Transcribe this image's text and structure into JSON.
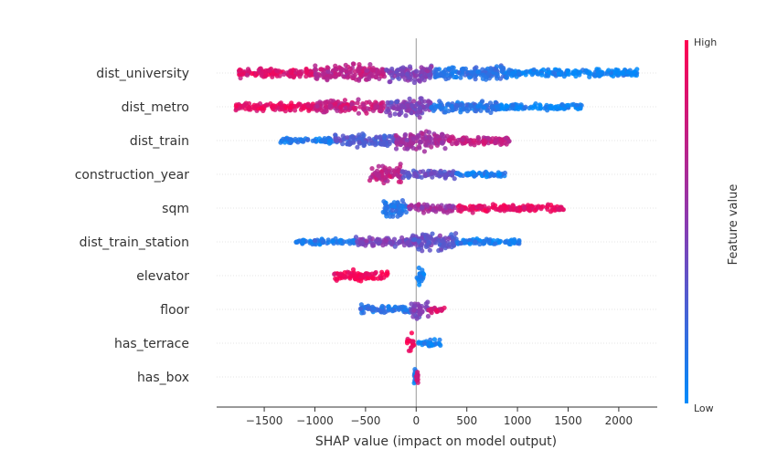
{
  "chart_data": {
    "type": "scatter",
    "subtype": "shap-beeswarm",
    "xlabel": "SHAP value (impact on model output)",
    "xlim": [
      -1970,
      2380
    ],
    "xticks": [
      -1500,
      -1000,
      -500,
      0,
      500,
      1000,
      1500,
      2000
    ],
    "xtick_labels": [
      "−1500",
      "−1000",
      "−500",
      "0",
      "500",
      "1000",
      "1500",
      "2000"
    ],
    "grid": false,
    "colorbar": {
      "label": "Feature value",
      "high_label": "High",
      "low_label": "Low",
      "high_color": "#ff0051",
      "low_color": "#008bfb"
    },
    "features": [
      {
        "name": "dist_university",
        "min": -1750,
        "max": 2180,
        "clusters": [
          {
            "start": -1750,
            "end": -1000,
            "fv": 0.85,
            "spread": 0.55
          },
          {
            "start": -1000,
            "end": -300,
            "fv": 0.7,
            "spread": 0.9
          },
          {
            "start": -300,
            "end": 150,
            "fv": 0.45,
            "spread": 1.0
          },
          {
            "start": 150,
            "end": 900,
            "fv": 0.15,
            "spread": 0.75
          },
          {
            "start": 900,
            "end": 2180,
            "fv": 0.05,
            "spread": 0.45
          }
        ]
      },
      {
        "name": "dist_metro",
        "min": -1780,
        "max": 1640,
        "clusters": [
          {
            "start": -1780,
            "end": -1000,
            "fv": 0.9,
            "spread": 0.45
          },
          {
            "start": -1000,
            "end": -300,
            "fv": 0.75,
            "spread": 0.7
          },
          {
            "start": -300,
            "end": 150,
            "fv": 0.45,
            "spread": 1.0
          },
          {
            "start": 150,
            "end": 800,
            "fv": 0.15,
            "spread": 0.6
          },
          {
            "start": 800,
            "end": 1640,
            "fv": 0.05,
            "spread": 0.35
          }
        ]
      },
      {
        "name": "dist_train",
        "min": -1340,
        "max": 920,
        "clusters": [
          {
            "start": -1340,
            "end": -800,
            "fv": 0.1,
            "spread": 0.3
          },
          {
            "start": -800,
            "end": -200,
            "fv": 0.3,
            "spread": 0.7
          },
          {
            "start": -200,
            "end": 300,
            "fv": 0.6,
            "spread": 1.0
          },
          {
            "start": 300,
            "end": 920,
            "fv": 0.75,
            "spread": 0.5
          }
        ]
      },
      {
        "name": "construction_year",
        "min": -460,
        "max": 880,
        "clusters": [
          {
            "start": -460,
            "end": -150,
            "fv": 0.7,
            "spread": 1.0
          },
          {
            "start": -150,
            "end": 400,
            "fv": 0.35,
            "spread": 0.45
          },
          {
            "start": 400,
            "end": 880,
            "fv": 0.1,
            "spread": 0.3
          }
        ]
      },
      {
        "name": "sqm",
        "min": -330,
        "max": 1460,
        "clusters": [
          {
            "start": -330,
            "end": -80,
            "fv": 0.15,
            "spread": 1.0
          },
          {
            "start": -80,
            "end": 400,
            "fv": 0.6,
            "spread": 0.45
          },
          {
            "start": 400,
            "end": 1460,
            "fv": 0.9,
            "spread": 0.4
          }
        ]
      },
      {
        "name": "dist_train_station",
        "min": -1190,
        "max": 1030,
        "clusters": [
          {
            "start": -1190,
            "end": -600,
            "fv": 0.1,
            "spread": 0.3
          },
          {
            "start": -600,
            "end": -50,
            "fv": 0.45,
            "spread": 0.55
          },
          {
            "start": -50,
            "end": 400,
            "fv": 0.35,
            "spread": 1.0
          },
          {
            "start": 400,
            "end": 1030,
            "fv": 0.1,
            "spread": 0.35
          }
        ]
      },
      {
        "name": "elevator",
        "min": -810,
        "max": 80,
        "clusters": [
          {
            "start": -810,
            "end": -280,
            "fv": 0.95,
            "spread": 0.55
          },
          {
            "start": 0,
            "end": 80,
            "fv": 0.05,
            "spread": 1.0
          }
        ]
      },
      {
        "name": "floor",
        "min": -550,
        "max": 280,
        "clusters": [
          {
            "start": -550,
            "end": -50,
            "fv": 0.15,
            "spread": 0.45
          },
          {
            "start": -50,
            "end": 120,
            "fv": 0.45,
            "spread": 1.0
          },
          {
            "start": 120,
            "end": 280,
            "fv": 0.85,
            "spread": 0.4
          }
        ]
      },
      {
        "name": "has_terrace",
        "min": -90,
        "max": 260,
        "clusters": [
          {
            "start": -90,
            "end": -20,
            "fv": 0.95,
            "spread": 1.0
          },
          {
            "start": 20,
            "end": 260,
            "fv": 0.05,
            "spread": 0.4
          }
        ]
      },
      {
        "name": "has_box",
        "min": -20,
        "max": 20,
        "clusters": [
          {
            "start": -20,
            "end": 0,
            "fv": 0.1,
            "spread": 1.0
          },
          {
            "start": 0,
            "end": 20,
            "fv": 0.8,
            "spread": 0.6
          }
        ]
      }
    ]
  }
}
